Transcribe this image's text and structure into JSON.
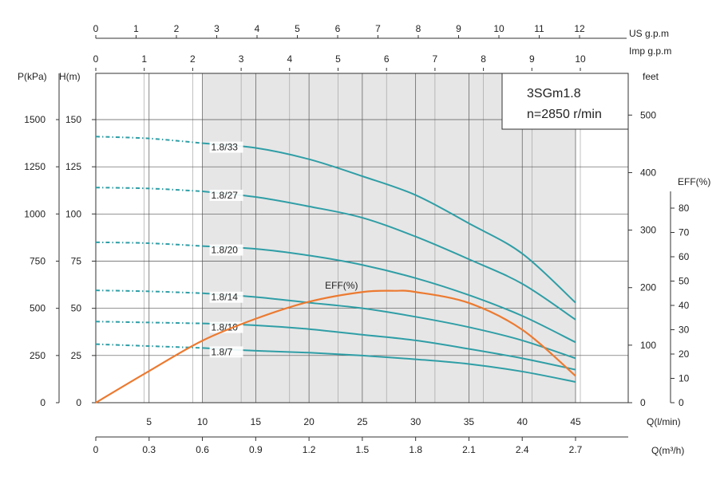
{
  "chart_data": {
    "type": "line",
    "title": "3SGm1.8",
    "subtitle": "n=2850 r/min",
    "x_axes": {
      "q_lmin": {
        "label": "Q(l/min)",
        "range": [
          0,
          50
        ],
        "ticks": [
          5,
          10,
          15,
          20,
          25,
          30,
          35,
          40,
          45
        ]
      },
      "q_m3h": {
        "label": "Q(m³/h)",
        "ticks": [
          0,
          0.3,
          0.6,
          0.9,
          1.2,
          1.5,
          1.8,
          2.1,
          2.4,
          2.7
        ]
      },
      "us_gpm": {
        "label": "US  g.p.m",
        "ticks": [
          0,
          1,
          2,
          3,
          4,
          5,
          6,
          7,
          8,
          9,
          10,
          11,
          12
        ]
      },
      "imp_gpm": {
        "label": "Imp  g.p.m",
        "ticks": [
          0,
          1,
          2,
          3,
          4,
          5,
          6,
          7,
          8,
          9,
          10
        ]
      }
    },
    "y_axes": {
      "head_m": {
        "label": "H(m)",
        "range": [
          0,
          170
        ],
        "ticks": [
          0,
          25,
          50,
          75,
          100,
          125,
          150
        ]
      },
      "pressure_kpa": {
        "label": "P(kPa)",
        "ticks": [
          0,
          250,
          500,
          750,
          1000,
          1250,
          1500
        ]
      },
      "feet": {
        "label": "feet",
        "ticks": [
          0,
          100,
          200,
          300,
          400,
          500
        ]
      },
      "eff_pct": {
        "label": "EFF(%)",
        "ticks": [
          0,
          10,
          20,
          30,
          40,
          50,
          60,
          70,
          80
        ]
      }
    },
    "operating_range_lmin": [
      10,
      45
    ],
    "series": [
      {
        "name": "1.8/33",
        "label": "1.8/33",
        "q": [
          0,
          5,
          10,
          15,
          20,
          25,
          30,
          35,
          40,
          45
        ],
        "h": [
          141,
          140,
          137.5,
          135,
          129,
          120,
          110,
          95,
          79,
          53
        ]
      },
      {
        "name": "1.8/27",
        "label": "1.8/27",
        "q": [
          0,
          5,
          10,
          15,
          20,
          25,
          30,
          35,
          40,
          45
        ],
        "h": [
          114,
          113.5,
          112,
          109,
          104,
          98,
          88,
          76,
          63,
          44
        ]
      },
      {
        "name": "1.8/20",
        "label": "1.8/20",
        "q": [
          0,
          5,
          10,
          15,
          20,
          25,
          30,
          35,
          40,
          45
        ],
        "h": [
          85,
          84.5,
          83,
          81.5,
          78,
          73,
          66,
          57,
          46,
          32
        ]
      },
      {
        "name": "1.8/14",
        "label": "1.8/14",
        "q": [
          0,
          5,
          10,
          15,
          20,
          25,
          30,
          35,
          40,
          45
        ],
        "h": [
          59.5,
          59,
          58,
          56,
          53,
          50,
          45.5,
          40,
          33,
          23.5
        ]
      },
      {
        "name": "1.8/10",
        "label": "1.8/10",
        "q": [
          0,
          5,
          10,
          15,
          20,
          25,
          30,
          35,
          40,
          45
        ],
        "h": [
          43,
          42.5,
          42,
          41,
          39,
          36,
          33,
          28.5,
          23.5,
          17.5
        ]
      },
      {
        "name": "1.8/7",
        "label": "1.8/7",
        "q": [
          0,
          5,
          10,
          15,
          20,
          25,
          30,
          35,
          40,
          45
        ],
        "h": [
          31,
          30,
          29,
          27.5,
          26.5,
          25,
          23,
          20.5,
          16.5,
          11
        ]
      },
      {
        "name": "EFF(%)",
        "label": "EFF(%)",
        "is_efficiency": true,
        "q": [
          0,
          5,
          10,
          15,
          20,
          25,
          28,
          30,
          35,
          40,
          45
        ],
        "eff": [
          0,
          13,
          25.5,
          34.5,
          41.5,
          45.5,
          46,
          45.5,
          41,
          30,
          11
        ]
      }
    ],
    "grid": true,
    "legend": "inline curve labels"
  }
}
